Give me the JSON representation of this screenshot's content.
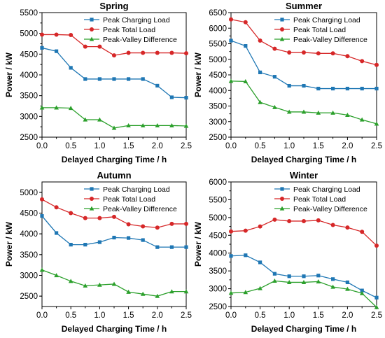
{
  "colors": {
    "Peak Charging Load": "#1f77b4",
    "Peak Total Load": "#d62728",
    "Peak-Valley Difference": "#2ca02c"
  },
  "chart_data": [
    {
      "type": "line",
      "title": "Spring",
      "xlabel": "Delayed Charging Time / h",
      "ylabel": "Power / kW",
      "xlim": [
        0.0,
        2.5
      ],
      "ylim": [
        2500,
        5500
      ],
      "xticks": [
        "0.0",
        "0.5",
        "1.0",
        "1.5",
        "2.0",
        "2.5"
      ],
      "yticks": [
        "2500",
        "3000",
        "3500",
        "4000",
        "4500",
        "5000",
        "5500"
      ],
      "legend": "top-right",
      "x": [
        0,
        0.25,
        0.5,
        0.75,
        1.0,
        1.25,
        1.5,
        1.75,
        2.0,
        2.25,
        2.5
      ],
      "series": [
        {
          "name": "Peak Charging Load",
          "marker": "square",
          "values": [
            4650,
            4570,
            4170,
            3900,
            3900,
            3900,
            3900,
            3900,
            3740,
            3460,
            3450
          ]
        },
        {
          "name": "Peak Total Load",
          "marker": "circle",
          "values": [
            4970,
            4970,
            4960,
            4680,
            4680,
            4470,
            4530,
            4530,
            4530,
            4530,
            4520
          ]
        },
        {
          "name": "Peak-Valley Difference",
          "marker": "triangle",
          "values": [
            3210,
            3210,
            3200,
            2920,
            2920,
            2720,
            2780,
            2780,
            2780,
            2780,
            2770
          ]
        }
      ]
    },
    {
      "type": "line",
      "title": "Summer",
      "xlabel": "Delayed Charging Time / h",
      "ylabel": "Power / kW",
      "xlim": [
        0.0,
        2.5
      ],
      "ylim": [
        2500,
        6500
      ],
      "xticks": [
        "0.0",
        "0.5",
        "1.0",
        "1.5",
        "2.0",
        "2.5"
      ],
      "yticks": [
        "2500",
        "3000",
        "3500",
        "4000",
        "4500",
        "5000",
        "5500",
        "6000",
        "6500"
      ],
      "legend": "top-right",
      "x": [
        0,
        0.25,
        0.5,
        0.75,
        1.0,
        1.25,
        1.5,
        1.75,
        2.0,
        2.25,
        2.5
      ],
      "series": [
        {
          "name": "Peak Charging Load",
          "marker": "square",
          "values": [
            5600,
            5430,
            4580,
            4440,
            4150,
            4150,
            4060,
            4060,
            4060,
            4060,
            4060
          ]
        },
        {
          "name": "Peak Total Load",
          "marker": "circle",
          "values": [
            6280,
            6190,
            5600,
            5340,
            5220,
            5220,
            5190,
            5190,
            5100,
            4940,
            4820
          ]
        },
        {
          "name": "Peak-Valley Difference",
          "marker": "triangle",
          "values": [
            4300,
            4290,
            3620,
            3460,
            3310,
            3310,
            3280,
            3280,
            3210,
            3060,
            2930
          ]
        }
      ]
    },
    {
      "type": "line",
      "title": "Autumn",
      "xlabel": "Delayed Charging Time / h",
      "ylabel": "Power / kW",
      "xlim": [
        0.0,
        2.5
      ],
      "ylim": [
        2250,
        5250
      ],
      "xticks": [
        "0.0",
        "0.5",
        "1.0",
        "1.5",
        "2.0",
        "2.5"
      ],
      "yticks": [
        "2500",
        "3000",
        "3500",
        "4000",
        "4500",
        "5000"
      ],
      "legend": "top-right",
      "x": [
        0,
        0.25,
        0.5,
        0.75,
        1.0,
        1.25,
        1.5,
        1.75,
        2.0,
        2.25,
        2.5
      ],
      "series": [
        {
          "name": "Peak Charging Load",
          "marker": "square",
          "values": [
            4430,
            4020,
            3740,
            3740,
            3800,
            3910,
            3900,
            3850,
            3680,
            3680,
            3680
          ]
        },
        {
          "name": "Peak Total Load",
          "marker": "circle",
          "values": [
            4830,
            4640,
            4500,
            4380,
            4380,
            4410,
            4230,
            4180,
            4150,
            4240,
            4240
          ]
        },
        {
          "name": "Peak-Valley Difference",
          "marker": "triangle",
          "values": [
            3130,
            3000,
            2860,
            2750,
            2770,
            2790,
            2600,
            2550,
            2500,
            2610,
            2610
          ]
        }
      ]
    },
    {
      "type": "line",
      "title": "Winter",
      "xlabel": "Delayed Charging Time / h",
      "ylabel": "Power / kW",
      "xlim": [
        0.0,
        2.5
      ],
      "ylim": [
        2500,
        6000
      ],
      "xticks": [
        "0.0",
        "0.5",
        "1.0",
        "1.5",
        "2.0",
        "2.5"
      ],
      "yticks": [
        "2500",
        "3000",
        "3500",
        "4000",
        "4500",
        "5000",
        "5500",
        "6000"
      ],
      "legend": "top-right",
      "x": [
        0,
        0.25,
        0.5,
        0.75,
        1.0,
        1.25,
        1.5,
        1.75,
        2.0,
        2.25,
        2.5
      ],
      "series": [
        {
          "name": "Peak Charging Load",
          "marker": "square",
          "values": [
            3920,
            3940,
            3740,
            3420,
            3350,
            3350,
            3370,
            3270,
            3180,
            2950,
            2750
          ]
        },
        {
          "name": "Peak Total Load",
          "marker": "circle",
          "values": [
            4610,
            4630,
            4750,
            4940,
            4900,
            4900,
            4920,
            4790,
            4720,
            4600,
            4210
          ]
        },
        {
          "name": "Peak-Valley Difference",
          "marker": "triangle",
          "values": [
            2880,
            2900,
            3010,
            3220,
            3180,
            3180,
            3200,
            3050,
            2990,
            2870,
            2480
          ]
        }
      ]
    }
  ]
}
